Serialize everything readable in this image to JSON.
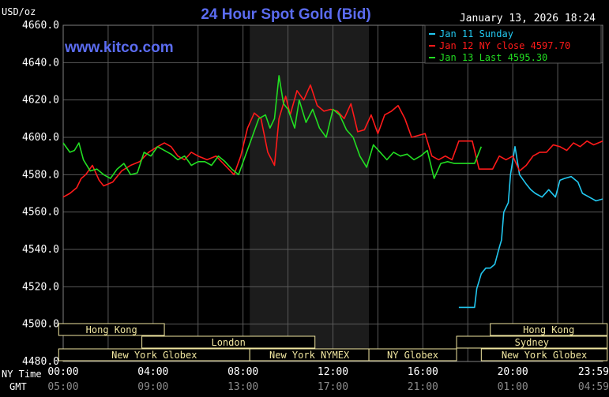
{
  "chart_data": {
    "type": "line",
    "title": "24 Hour Spot Gold (Bid)",
    "watermark": "www.kitco.com",
    "timestamp": "January 13, 2026 18:24",
    "ylabel": "USD/oz",
    "ylim": [
      4480,
      4660
    ],
    "y_ticks": [
      "4660.0",
      "4640.0",
      "4620.0",
      "4600.0",
      "4580.0",
      "4560.0",
      "4540.0",
      "4520.0",
      "4500.0",
      "4480.0"
    ],
    "xlim": [
      0,
      24
    ],
    "x_ticks": [
      {
        "h": 0,
        "ny": "00:00",
        "gmt": "05:00"
      },
      {
        "h": 4,
        "ny": "04:00",
        "gmt": "09:00"
      },
      {
        "h": 8,
        "ny": "08:00",
        "gmt": "13:00"
      },
      {
        "h": 12,
        "ny": "12:00",
        "gmt": "17:00"
      },
      {
        "h": 16,
        "ny": "16:00",
        "gmt": "21:00"
      },
      {
        "h": 20,
        "ny": "20:00",
        "gmt": "01:00"
      },
      {
        "h": 24,
        "ny": "23:59",
        "gmt": "04:59"
      }
    ],
    "xaxis_row_labels": {
      "ny": "NY Time",
      "gmt": "GMT"
    },
    "shaded_range": [
      8.3,
      13.6
    ],
    "grid": true,
    "legend_position": "top-right",
    "colors": {
      "background": "#000000",
      "grid": "#5a5a5a",
      "axis_text": "#ffffff",
      "title": "#5b6cf0",
      "market_box": "#f0e6a0",
      "shade": "#1c1c1c"
    },
    "series": [
      {
        "name": "Jan 11 Sunday",
        "color": "#22c8f0",
        "x": [
          17.6,
          18.3,
          18.4,
          18.5,
          18.6,
          18.8,
          19.0,
          19.2,
          19.4,
          19.5,
          19.6,
          19.8,
          19.9,
          20.1,
          20.3,
          20.6,
          20.8,
          21.0,
          21.3,
          21.6,
          21.9,
          22.1,
          22.3,
          22.6,
          22.9,
          23.1,
          23.4,
          23.7,
          24.0
        ],
        "y": [
          4509,
          4509,
          4519,
          4523,
          4527,
          4530,
          4530,
          4532,
          4541,
          4545,
          4560,
          4565,
          4580,
          4595,
          4580,
          4575,
          4572,
          4570,
          4568,
          4572,
          4568,
          4577,
          4578,
          4579,
          4576,
          4570,
          4568,
          4566,
          4567
        ]
      },
      {
        "name": "Jan 12 NY close 4597.70",
        "color": "#ff1a1a",
        "x": [
          0,
          0.3,
          0.6,
          0.8,
          1.0,
          1.3,
          1.6,
          1.8,
          2.2,
          2.6,
          3.0,
          3.4,
          3.8,
          4.2,
          4.5,
          4.8,
          5.1,
          5.4,
          5.7,
          6.0,
          6.4,
          6.8,
          7.2,
          7.6,
          7.9,
          8.2,
          8.5,
          8.8,
          9.1,
          9.4,
          9.6,
          9.9,
          10.1,
          10.4,
          10.7,
          11.0,
          11.3,
          11.6,
          11.9,
          12.2,
          12.5,
          12.8,
          13.1,
          13.4,
          13.7,
          14.0,
          14.3,
          14.6,
          14.9,
          15.2,
          15.5,
          15.8,
          16.1,
          16.4,
          16.7,
          17.0,
          17.3,
          17.6,
          17.9,
          18.2,
          18.5,
          18.8,
          19.1,
          19.4,
          19.7,
          20.0,
          20.3,
          20.6,
          20.9,
          21.2,
          21.5,
          21.8,
          22.1,
          22.4,
          22.7,
          23.0,
          23.3,
          23.6,
          24.0
        ],
        "y": [
          4568,
          4570,
          4573,
          4578,
          4580,
          4585,
          4577,
          4574,
          4576,
          4582,
          4585,
          4587,
          4592,
          4595,
          4597,
          4595,
          4590,
          4588,
          4592,
          4590,
          4588,
          4590,
          4585,
          4580,
          4590,
          4605,
          4613,
          4610,
          4592,
          4585,
          4610,
          4622,
          4612,
          4625,
          4620,
          4628,
          4617,
          4614,
          4615,
          4614,
          4610,
          4618,
          4603,
          4604,
          4612,
          4602,
          4612,
          4614,
          4617,
          4610,
          4600,
          4601,
          4602,
          4590,
          4588,
          4590,
          4588,
          4598,
          4598,
          4598,
          4583,
          4583,
          4583,
          4590,
          4588,
          4590,
          4582,
          4585,
          4590,
          4592,
          4592,
          4596,
          4595,
          4593,
          4597,
          4595,
          4598,
          4596,
          4598
        ]
      },
      {
        "name": "Jan 13 Last 4595.30",
        "color": "#22dd22",
        "x": [
          0,
          0.3,
          0.5,
          0.7,
          0.9,
          1.2,
          1.5,
          1.8,
          2.1,
          2.4,
          2.7,
          3.0,
          3.3,
          3.6,
          3.9,
          4.2,
          4.5,
          4.8,
          5.1,
          5.4,
          5.7,
          6.0,
          6.3,
          6.6,
          6.9,
          7.2,
          7.5,
          7.8,
          8.1,
          8.4,
          8.7,
          9.0,
          9.2,
          9.4,
          9.6,
          9.8,
          10.0,
          10.3,
          10.5,
          10.8,
          11.1,
          11.4,
          11.7,
          12.0,
          12.3,
          12.6,
          12.9,
          13.2,
          13.5,
          13.8,
          14.1,
          14.4,
          14.7,
          15.0,
          15.3,
          15.6,
          15.9,
          16.2,
          16.5,
          16.8,
          17.1,
          17.4,
          17.7,
          18.0,
          18.3,
          18.6
        ],
        "y": [
          4597,
          4592,
          4593,
          4597,
          4588,
          4582,
          4583,
          4580,
          4578,
          4583,
          4586,
          4580,
          4581,
          4592,
          4590,
          4595,
          4593,
          4591,
          4588,
          4590,
          4585,
          4587,
          4587,
          4585,
          4590,
          4587,
          4583,
          4580,
          4590,
          4600,
          4610,
          4612,
          4605,
          4610,
          4633,
          4618,
          4615,
          4605,
          4620,
          4608,
          4615,
          4605,
          4600,
          4615,
          4612,
          4604,
          4600,
          4590,
          4584,
          4596,
          4592,
          4588,
          4592,
          4590,
          4591,
          4588,
          4590,
          4593,
          4578,
          4586,
          4587,
          4586,
          4586,
          4586,
          4586,
          4595
        ]
      }
    ],
    "markets": [
      {
        "label": "Hong Kong",
        "start": -0.2,
        "end": 4.5,
        "row": 0
      },
      {
        "label": "Hong Kong",
        "start": 19.0,
        "end": 24.2,
        "row": 0
      },
      {
        "label": "London",
        "start": 3.5,
        "end": 11.2,
        "row": 1
      },
      {
        "label": "Sydney",
        "start": 17.5,
        "end": 24.2,
        "row": 1
      },
      {
        "label": "New York Globex",
        "start": -0.2,
        "end": 8.3,
        "row": 2
      },
      {
        "label": "New York NYMEX",
        "start": 8.3,
        "end": 13.6,
        "row": 2
      },
      {
        "label": "NY Globex",
        "start": 13.6,
        "end": 17.5,
        "row": 2
      },
      {
        "label": "New York Globex",
        "start": 18.6,
        "end": 24.2,
        "row": 2
      }
    ]
  }
}
